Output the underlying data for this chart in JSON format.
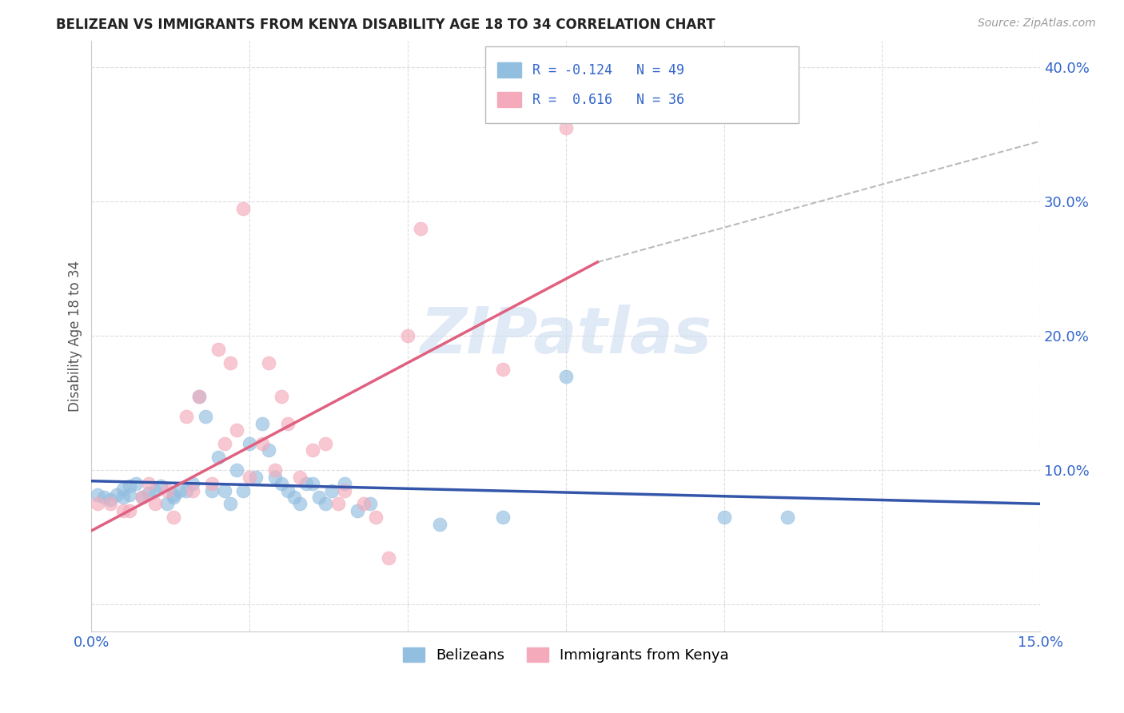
{
  "title": "BELIZEAN VS IMMIGRANTS FROM KENYA DISABILITY AGE 18 TO 34 CORRELATION CHART",
  "source": "Source: ZipAtlas.com",
  "ylabel": "Disability Age 18 to 34",
  "xlim": [
    0.0,
    0.15
  ],
  "ylim": [
    -0.02,
    0.42
  ],
  "xticks": [
    0.0,
    0.025,
    0.05,
    0.075,
    0.1,
    0.125,
    0.15
  ],
  "xtick_labels": [
    "0.0%",
    "",
    "",
    "",
    "",
    "",
    "15.0%"
  ],
  "yticks": [
    0.0,
    0.1,
    0.2,
    0.3,
    0.4
  ],
  "ytick_labels": [
    "",
    "10.0%",
    "20.0%",
    "30.0%",
    "40.0%"
  ],
  "watermark": "ZIPatlas",
  "legend_text_color": "#3366CC",
  "blue_color": "#92BEE0",
  "pink_color": "#F4AABB",
  "blue_line_color": "#3355AA",
  "pink_line_color": "#E06080",
  "dash_color": "#BBBBBB",
  "grid_color": "#DDDDDD",
  "blue_scatter_x": [
    0.001,
    0.002,
    0.003,
    0.004,
    0.005,
    0.005,
    0.006,
    0.006,
    0.007,
    0.008,
    0.009,
    0.01,
    0.011,
    0.012,
    0.013,
    0.013,
    0.014,
    0.015,
    0.016,
    0.017,
    0.018,
    0.019,
    0.02,
    0.021,
    0.022,
    0.023,
    0.024,
    0.025,
    0.026,
    0.027,
    0.028,
    0.029,
    0.03,
    0.031,
    0.032,
    0.033,
    0.034,
    0.035,
    0.036,
    0.037,
    0.038,
    0.04,
    0.042,
    0.044,
    0.055,
    0.065,
    0.075,
    0.1,
    0.11
  ],
  "blue_scatter_y": [
    0.082,
    0.08,
    0.078,
    0.082,
    0.086,
    0.08,
    0.088,
    0.082,
    0.09,
    0.08,
    0.083,
    0.085,
    0.088,
    0.075,
    0.08,
    0.082,
    0.085,
    0.085,
    0.09,
    0.155,
    0.14,
    0.085,
    0.11,
    0.085,
    0.075,
    0.1,
    0.085,
    0.12,
    0.095,
    0.135,
    0.115,
    0.095,
    0.09,
    0.085,
    0.08,
    0.075,
    0.09,
    0.09,
    0.08,
    0.075,
    0.085,
    0.09,
    0.07,
    0.075,
    0.06,
    0.065,
    0.17,
    0.065,
    0.065
  ],
  "pink_scatter_x": [
    0.001,
    0.003,
    0.005,
    0.006,
    0.008,
    0.009,
    0.01,
    0.012,
    0.013,
    0.015,
    0.016,
    0.017,
    0.019,
    0.02,
    0.021,
    0.022,
    0.023,
    0.024,
    0.025,
    0.027,
    0.028,
    0.029,
    0.03,
    0.031,
    0.033,
    0.035,
    0.037,
    0.039,
    0.04,
    0.043,
    0.045,
    0.047,
    0.05,
    0.052,
    0.065,
    0.075
  ],
  "pink_scatter_y": [
    0.075,
    0.075,
    0.07,
    0.07,
    0.08,
    0.09,
    0.075,
    0.085,
    0.065,
    0.14,
    0.085,
    0.155,
    0.09,
    0.19,
    0.12,
    0.18,
    0.13,
    0.295,
    0.095,
    0.12,
    0.18,
    0.1,
    0.155,
    0.135,
    0.095,
    0.115,
    0.12,
    0.075,
    0.085,
    0.075,
    0.065,
    0.035,
    0.2,
    0.28,
    0.175,
    0.355
  ],
  "blue_trend_x": [
    0.0,
    0.15
  ],
  "blue_trend_y": [
    0.092,
    0.075
  ],
  "pink_trend_x": [
    0.0,
    0.08
  ],
  "pink_trend_y": [
    0.055,
    0.255
  ],
  "dash_trend_x": [
    0.08,
    0.15
  ],
  "dash_trend_y": [
    0.255,
    0.345
  ]
}
